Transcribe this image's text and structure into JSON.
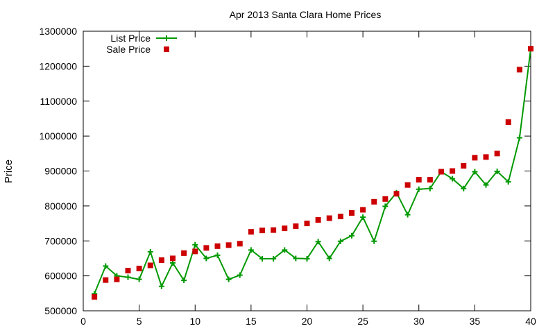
{
  "chart_data": {
    "type": "line",
    "title": "Apr 2013 Santa Clara Home Prices",
    "xlabel": "",
    "ylabel": "Price",
    "xlim": [
      0,
      40
    ],
    "ylim": [
      500000,
      1300000
    ],
    "xticks": [
      0,
      5,
      10,
      15,
      20,
      25,
      30,
      35,
      40
    ],
    "yticks": [
      500000,
      600000,
      700000,
      800000,
      900000,
      1000000,
      1100000,
      1200000,
      1300000
    ],
    "grid": false,
    "legend_position": "top-left",
    "series": [
      {
        "name": "List Price",
        "style": "line-points",
        "marker": "plus",
        "color": "#009900",
        "x": [
          1,
          2,
          3,
          4,
          5,
          6,
          7,
          8,
          9,
          10,
          11,
          12,
          13,
          14,
          15,
          16,
          17,
          18,
          19,
          20,
          21,
          22,
          23,
          24,
          25,
          26,
          27,
          28,
          29,
          30,
          31,
          32,
          33,
          34,
          35,
          36,
          37,
          38,
          39,
          40
        ],
        "y": [
          549000,
          628000,
          600000,
          596000,
          590000,
          669000,
          570000,
          637000,
          587000,
          689000,
          650000,
          659000,
          590000,
          602000,
          674000,
          649000,
          649000,
          674000,
          650000,
          649000,
          698000,
          650000,
          699000,
          715000,
          768000,
          699000,
          799000,
          838000,
          775000,
          848000,
          850000,
          898000,
          878000,
          850000,
          898000,
          860000,
          899000,
          869000,
          995000,
          1249000
        ]
      },
      {
        "name": "Sale Price",
        "style": "points",
        "marker": "square",
        "color": "#cc0000",
        "x": [
          1,
          2,
          3,
          4,
          5,
          6,
          7,
          8,
          9,
          10,
          11,
          12,
          13,
          14,
          15,
          16,
          17,
          18,
          19,
          20,
          21,
          22,
          23,
          24,
          25,
          26,
          27,
          28,
          29,
          30,
          31,
          32,
          33,
          34,
          35,
          36,
          37,
          38,
          39,
          40
        ],
        "y": [
          540000,
          588000,
          590000,
          615000,
          621000,
          630000,
          645000,
          650000,
          665000,
          670000,
          680000,
          685000,
          688000,
          692000,
          726000,
          730000,
          731000,
          736000,
          742000,
          750000,
          760000,
          765000,
          770000,
          780000,
          789000,
          812000,
          820000,
          835000,
          860000,
          875000,
          875000,
          898000,
          900000,
          915000,
          938000,
          940000,
          950000,
          1040000,
          1190000,
          1250000
        ]
      }
    ]
  }
}
